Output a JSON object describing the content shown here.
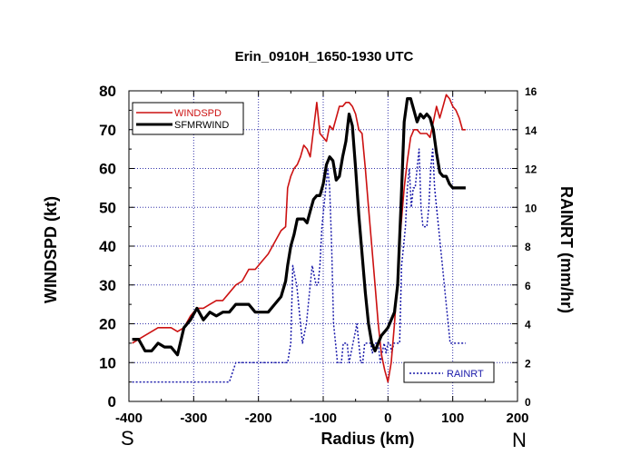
{
  "chart_data": {
    "type": "line",
    "title": "Erin_0910H_1650-1930 UTC",
    "xlabel": "Radius (km)",
    "ylabel": "WINDSPD (kt)",
    "y2label": "RAINRT (mm/hr)",
    "xlim": [
      -400,
      200
    ],
    "ylim": [
      0,
      80
    ],
    "y2lim": [
      0,
      16
    ],
    "xticks": [
      "-400",
      "-300",
      "-200",
      "-100",
      "0",
      "100",
      "200"
    ],
    "yticks": [
      "0",
      "10",
      "20",
      "30",
      "40",
      "50",
      "60",
      "70",
      "80"
    ],
    "y2ticks": [
      "0",
      "2",
      "4",
      "6",
      "8",
      "10",
      "12",
      "14",
      "16"
    ],
    "left_direction": "S",
    "right_direction": "N",
    "grid": true,
    "legend": [
      {
        "name": "WINDSPD",
        "color": "#cc1111"
      },
      {
        "name": "SFMRWIND",
        "color": "#000000"
      },
      {
        "name": "RAINRT",
        "color": "#1a1aaa"
      }
    ],
    "series": [
      {
        "name": "WINDSPD",
        "axis": "left",
        "color": "#cc1111",
        "x": [
          -395,
          -385,
          -375,
          -365,
          -355,
          -345,
          -335,
          -325,
          -315,
          -305,
          -295,
          -285,
          -275,
          -265,
          -255,
          -245,
          -235,
          -225,
          -215,
          -205,
          -195,
          -185,
          -175,
          -165,
          -158,
          -155,
          -150,
          -145,
          -140,
          -135,
          -130,
          -125,
          -120,
          -115,
          -110,
          -105,
          -100,
          -95,
          -90,
          -85,
          -80,
          -75,
          -70,
          -65,
          -60,
          -55,
          -50,
          -45,
          -40,
          -35,
          -30,
          -25,
          -20,
          -15,
          -10,
          -5,
          0,
          5,
          10,
          15,
          20,
          25,
          30,
          35,
          40,
          45,
          50,
          55,
          60,
          65,
          70,
          75,
          80,
          85,
          90,
          95,
          100,
          105,
          110,
          115,
          120
        ],
        "values": [
          15,
          16,
          17,
          18,
          19,
          19,
          19,
          18,
          19,
          22,
          24,
          24,
          25,
          26,
          26,
          28,
          30,
          31,
          34,
          34,
          36,
          38,
          41,
          44,
          45,
          55,
          58,
          60,
          61,
          63,
          66,
          65,
          63,
          70,
          77,
          69,
          68,
          67,
          71,
          70,
          73,
          76,
          76,
          77,
          77,
          76,
          74,
          70,
          69,
          60,
          50,
          40,
          30,
          20,
          12,
          8,
          5,
          10,
          20,
          32,
          45,
          55,
          62,
          68,
          70,
          70,
          69,
          69,
          69,
          68,
          72,
          76,
          73,
          76,
          79,
          78,
          76,
          75,
          73,
          70,
          70
        ]
      },
      {
        "name": "SFMRWIND",
        "axis": "left",
        "color": "#000000",
        "x": [
          -395,
          -385,
          -375,
          -365,
          -355,
          -345,
          -335,
          -325,
          -315,
          -305,
          -295,
          -285,
          -275,
          -265,
          -255,
          -245,
          -235,
          -225,
          -215,
          -205,
          -195,
          -185,
          -175,
          -165,
          -158,
          -155,
          -150,
          -145,
          -140,
          -135,
          -130,
          -125,
          -120,
          -115,
          -110,
          -105,
          -100,
          -95,
          -90,
          -85,
          -80,
          -75,
          -70,
          -65,
          -60,
          -55,
          -50,
          -45,
          -40,
          -35,
          -30,
          -25,
          -20,
          -15,
          -10,
          -5,
          0,
          5,
          10,
          15,
          20,
          25,
          30,
          35,
          40,
          45,
          50,
          55,
          60,
          65,
          70,
          75,
          80,
          85,
          90,
          95,
          100,
          105,
          110,
          115,
          120
        ],
        "values": [
          16,
          16,
          13,
          13,
          15,
          14,
          14,
          12,
          19,
          21,
          24,
          21,
          23,
          22,
          23,
          23,
          25,
          25,
          25,
          23,
          23,
          23,
          25,
          27,
          31,
          35,
          40,
          43,
          47,
          47,
          47,
          46,
          49,
          52,
          53,
          53,
          56,
          61,
          63,
          62,
          57,
          58,
          63,
          67,
          74,
          71,
          60,
          48,
          38,
          28,
          20,
          15,
          13,
          15,
          17,
          18,
          19,
          21,
          23,
          30,
          50,
          72,
          78,
          78,
          75,
          72,
          74,
          73,
          74,
          73,
          70,
          64,
          59,
          58,
          58,
          56,
          55,
          55,
          55,
          55,
          55
        ]
      },
      {
        "name": "RAINRT",
        "axis": "right",
        "color": "#1a1aaa",
        "x": [
          -395,
          -380,
          -360,
          -340,
          -320,
          -300,
          -280,
          -260,
          -250,
          -245,
          -235,
          -225,
          -215,
          -205,
          -195,
          -185,
          -175,
          -165,
          -160,
          -155,
          -150,
          -147,
          -144,
          -141,
          -138,
          -135,
          -132,
          -129,
          -126,
          -123,
          -120,
          -117,
          -114,
          -111,
          -108,
          -105,
          -102,
          -99,
          -96,
          -93,
          -90,
          -87,
          -84,
          -81,
          -78,
          -75,
          -72,
          -69,
          -66,
          -63,
          -60,
          -57,
          -54,
          -51,
          -48,
          -45,
          -42,
          -39,
          -36,
          -33,
          -30,
          -27,
          -24,
          -21,
          -18,
          -15,
          -12,
          -9,
          -6,
          -3,
          0,
          3,
          6,
          9,
          12,
          15,
          18,
          21,
          24,
          27,
          30,
          33,
          36,
          39,
          42,
          45,
          48,
          51,
          54,
          57,
          60,
          63,
          66,
          69,
          72,
          75,
          78,
          81,
          84,
          87,
          90,
          93,
          96,
          99,
          102,
          105,
          108,
          111,
          114,
          117,
          120
        ],
        "values": [
          1,
          1,
          1,
          1,
          1,
          1,
          1,
          1,
          1,
          1,
          2,
          2,
          2,
          2,
          2,
          2,
          2,
          2,
          2,
          2,
          3,
          7,
          6.5,
          6,
          5,
          4,
          3,
          3.5,
          4,
          5,
          6,
          7,
          6.5,
          6,
          6,
          7,
          9,
          10,
          11,
          12,
          11,
          8,
          4,
          3,
          2,
          2,
          2,
          3,
          3,
          3,
          2,
          2.5,
          3,
          3.5,
          4,
          3,
          2,
          2,
          3,
          3,
          3,
          3,
          2.5,
          3,
          3,
          3,
          2,
          2.5,
          3,
          2.5,
          3,
          3,
          2.5,
          3,
          3,
          3,
          3,
          7,
          8,
          9,
          11,
          12,
          10,
          11,
          11,
          12,
          13,
          10,
          9,
          9,
          9,
          10,
          12,
          13,
          11,
          10,
          9,
          8,
          7,
          6,
          5,
          4,
          3,
          3,
          3,
          3,
          3,
          3,
          3,
          3,
          3
        ]
      }
    ]
  }
}
